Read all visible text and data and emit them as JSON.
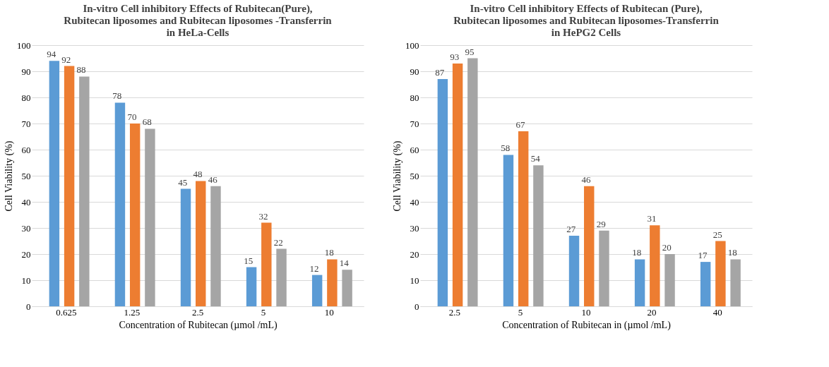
{
  "chart_data": [
    {
      "type": "bar",
      "title": "In-vitro Cell inhibitory Effects of Rubitecan(Pure),\nRubitecan liposomes and Rubitecan  liposomes -Transferrin\nin HeLa-Cells",
      "xlabel": "Concentration of Rubitecan (µmol /mL)",
      "ylabel": "Cell Viability (%)",
      "categories": [
        "0.625",
        "1.25",
        "2.5",
        "5",
        "10"
      ],
      "series": [
        {
          "color": "#5b9bd5",
          "values": [
            94,
            78,
            45,
            15,
            12
          ]
        },
        {
          "color": "#ed7d31",
          "values": [
            92,
            70,
            48,
            32,
            18
          ]
        },
        {
          "color": "#a5a5a5",
          "values": [
            88,
            68,
            46,
            22,
            14
          ]
        }
      ],
      "ylim": [
        0,
        100
      ],
      "yticks": [
        0,
        10,
        20,
        30,
        40,
        50,
        60,
        70,
        80,
        90,
        100
      ],
      "grid": "y",
      "data_labels": true,
      "legend": false
    },
    {
      "type": "bar",
      "title": "In-vitro Cell inhibitory Effects of Rubitecan (Pure),\nRubitecan liposomes and Rubitecan liposomes-Transferrin\nin HePG2 Cells",
      "xlabel": "Concentration of Rubitecan in (µmol /mL)",
      "ylabel": "Cell Viability  (%)",
      "categories": [
        "2.5",
        "5",
        "10",
        "20",
        "40"
      ],
      "series": [
        {
          "color": "#5b9bd5",
          "values": [
            87,
            58,
            27,
            18,
            17
          ]
        },
        {
          "color": "#ed7d31",
          "values": [
            93,
            67,
            46,
            31,
            25
          ]
        },
        {
          "color": "#a5a5a5",
          "values": [
            95,
            54,
            29,
            20,
            18
          ]
        }
      ],
      "ylim": [
        0,
        100
      ],
      "yticks": [
        0,
        10,
        20,
        30,
        40,
        50,
        60,
        70,
        80,
        90,
        100
      ],
      "grid": "y",
      "data_labels": true,
      "legend": false
    }
  ]
}
